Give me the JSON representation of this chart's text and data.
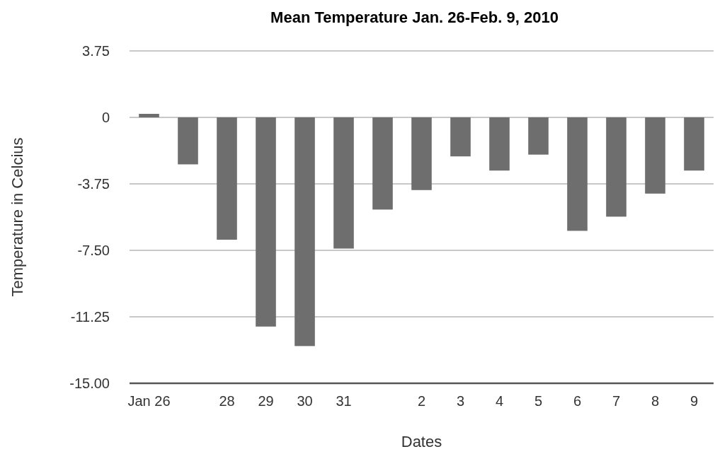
{
  "chart_data": {
    "type": "bar",
    "title": "Mean Temperature Jan. 26-Feb. 9, 2010",
    "xlabel": "Dates",
    "ylabel": "Temperature in Celcius",
    "categories": [
      "Jan 26",
      null,
      "28",
      "29",
      "30",
      "31",
      null,
      "2",
      "3",
      "4",
      "5",
      "6",
      "7",
      "8",
      "9"
    ],
    "values": [
      0.2,
      -2.65,
      -6.9,
      -11.8,
      -12.9,
      -7.4,
      -5.2,
      -4.1,
      -2.2,
      -3.0,
      -2.1,
      -6.4,
      -5.6,
      -4.3,
      -3.0
    ],
    "color": "#6e6e6e",
    "ylim": [
      -15,
      3.75
    ],
    "yticks": [
      {
        "value": 3.75,
        "label": "3.75"
      },
      {
        "value": 0,
        "label": "0"
      },
      {
        "value": -3.75,
        "label": "-3.75"
      },
      {
        "value": -7.5,
        "label": "-7.50"
      },
      {
        "value": -11.25,
        "label": "-11.25"
      },
      {
        "value": -15,
        "label": "-15.00"
      }
    ],
    "grid": "y"
  }
}
